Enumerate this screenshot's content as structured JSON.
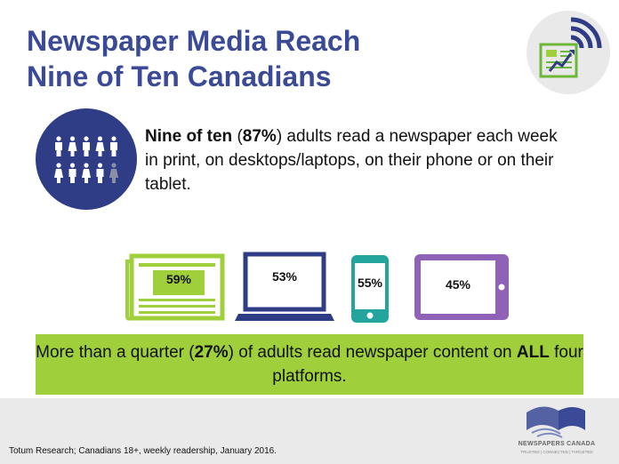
{
  "title": {
    "line1": "Newspaper Media Reach",
    "line2": "Nine of Ten Canadians"
  },
  "main": {
    "intro_bold": "Nine of ten",
    "intro_paren_open": " (",
    "intro_pct": "87%",
    "intro_rest": ") adults read a newspaper each week in print, on desktops/laptops, on their phone or on their tablet."
  },
  "platforms": [
    {
      "name": "newspaper-icon",
      "pct": "59%",
      "color": "#9fcf3a"
    },
    {
      "name": "laptop-icon",
      "pct": "53%",
      "color": "#2f3d87"
    },
    {
      "name": "phone-icon",
      "pct": "55%",
      "color": "#23a59e"
    },
    {
      "name": "tablet-icon",
      "pct": "45%",
      "color": "#8f62b8"
    }
  ],
  "banner": {
    "part1": "More than a quarter (",
    "pct": "27%",
    "part2": ") of adults read newspaper content on ",
    "bold": "ALL",
    "part3": " four platforms."
  },
  "footer": {
    "source": "Totum Research; Canadians 18+, weekly readership, January 2016.",
    "org_name": "NEWSPAPERS CANADA",
    "org_tagline": "TRUSTED | CONNECTED | TARGETED"
  },
  "people": {
    "highlighted": 9,
    "total": 10
  }
}
